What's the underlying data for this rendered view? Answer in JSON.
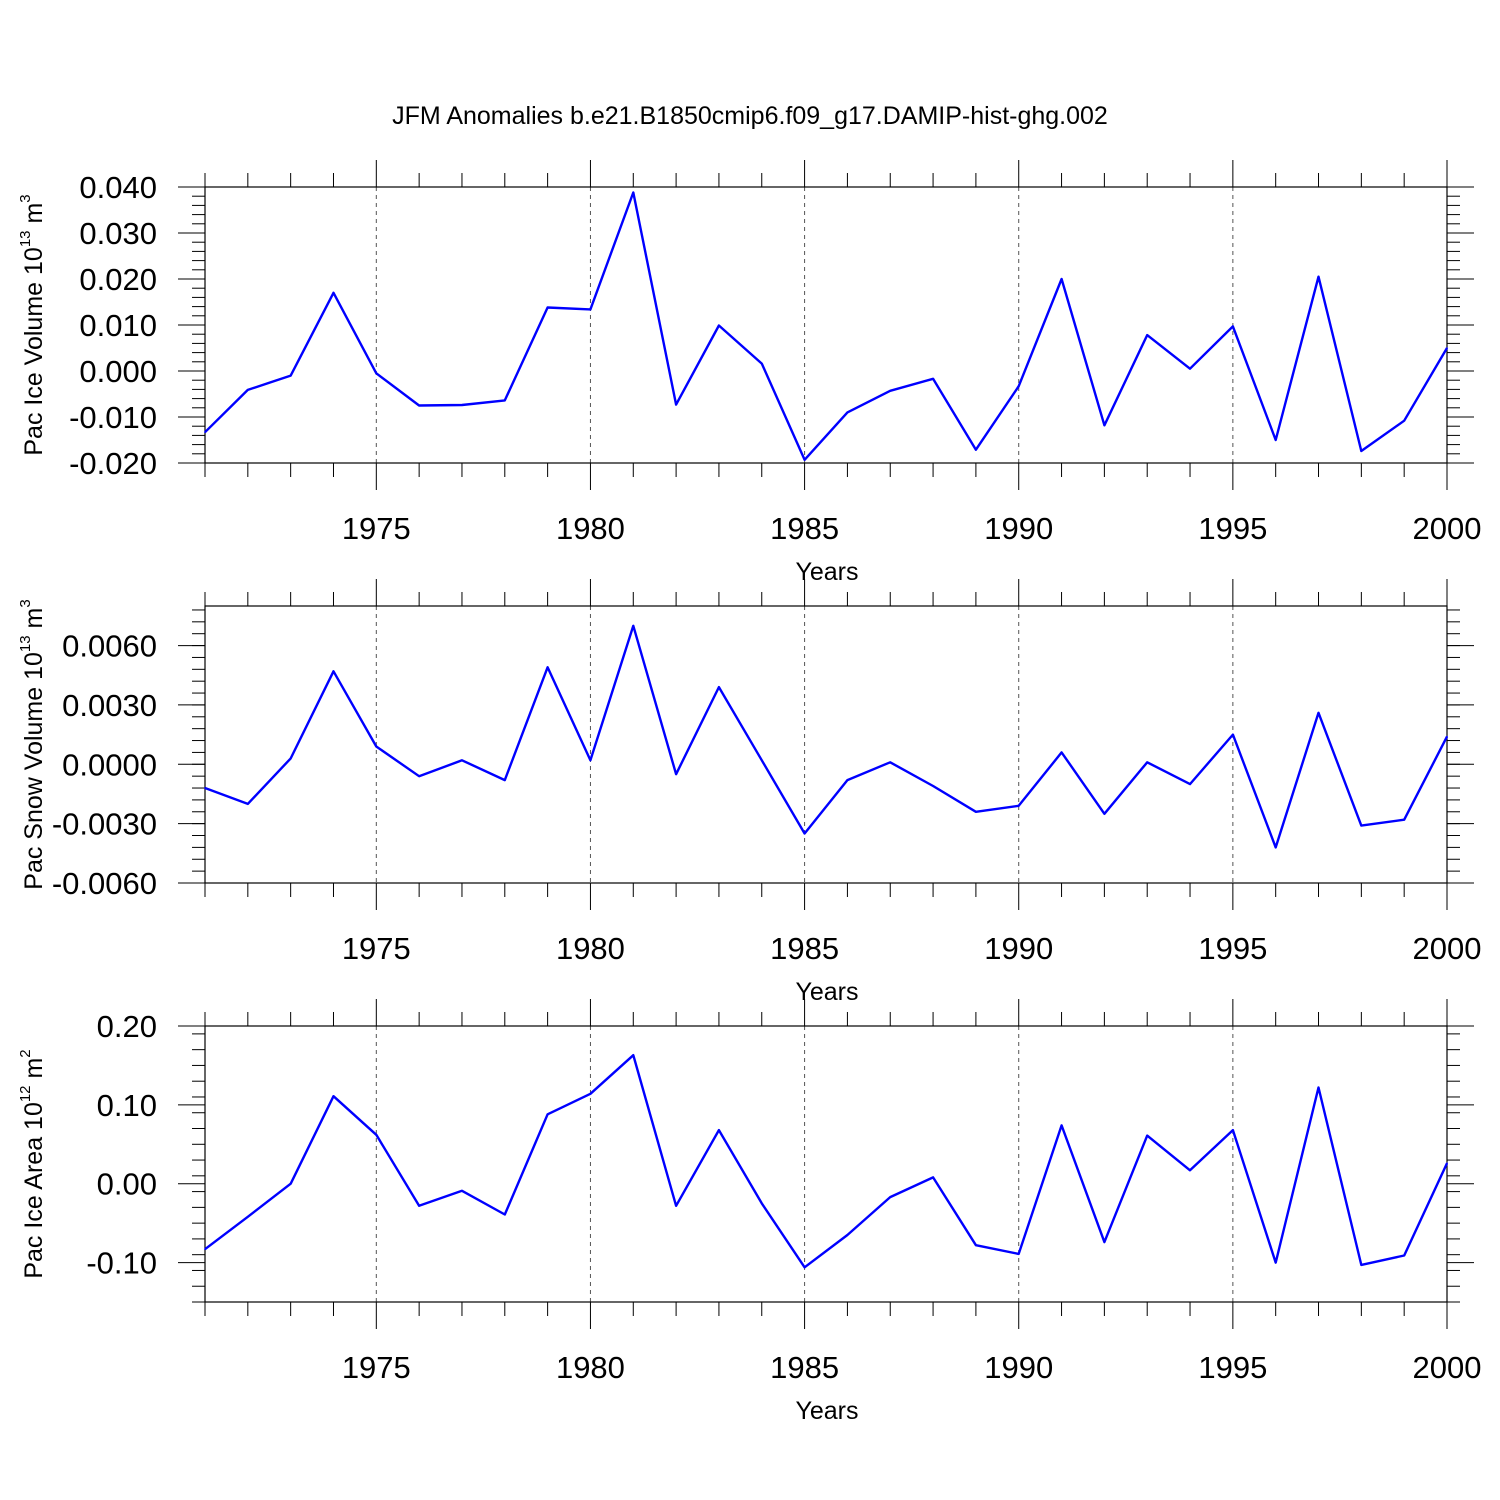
{
  "title": "JFM Anomalies b.e21.B1850cmip6.f09_g17.DAMIP-hist-ghg.002",
  "chart_data": [
    {
      "type": "line",
      "xlabel": "Years",
      "ylabel": {
        "base": "Pac Ice Volume 10",
        "exp": "13",
        "unit": " m",
        "unit_exp": "3"
      },
      "xlim": [
        1971,
        2000
      ],
      "ylim": [
        -0.02,
        0.04
      ],
      "yticks": [
        -0.02,
        -0.01,
        0.0,
        0.01,
        0.02,
        0.03,
        0.04
      ],
      "ytick_labels": [
        "-0.020",
        "-0.010",
        "0.000",
        "0.010",
        "0.020",
        "0.030",
        "0.040"
      ],
      "xticks": [
        1975,
        1980,
        1985,
        1990,
        1995,
        2000
      ],
      "xtick_labels": [
        "1975",
        "1980",
        "1985",
        "1990",
        "1995",
        "2000"
      ],
      "grid_x": true,
      "color": "#0000ff",
      "x": [
        1971,
        1972,
        1973,
        1974,
        1975,
        1976,
        1977,
        1978,
        1979,
        1980,
        1981,
        1982,
        1983,
        1984,
        1985,
        1986,
        1987,
        1988,
        1989,
        1990,
        1991,
        1992,
        1993,
        1994,
        1995,
        1996,
        1997,
        1998,
        1999,
        2000
      ],
      "values": [
        -0.0133,
        -0.0041,
        -0.001,
        0.017,
        -0.0005,
        -0.0075,
        -0.0074,
        -0.0064,
        0.0138,
        0.0134,
        0.0388,
        -0.0073,
        0.0099,
        0.0016,
        -0.0193,
        -0.009,
        -0.0043,
        -0.0017,
        -0.0171,
        -0.0033,
        0.02,
        -0.0118,
        0.0078,
        0.0005,
        0.0097,
        -0.015,
        0.0205,
        -0.0174,
        -0.0108,
        0.005
      ]
    },
    {
      "type": "line",
      "xlabel": "Years",
      "ylabel": {
        "base": "Pac Snow Volume 10",
        "exp": "13",
        "unit": " m",
        "unit_exp": "3"
      },
      "xlim": [
        1971,
        2000
      ],
      "ylim": [
        -0.006,
        0.008
      ],
      "yticks": [
        -0.006,
        -0.003,
        0.0,
        0.003,
        0.006
      ],
      "ytick_labels": [
        "-0.0060",
        "-0.0030",
        "0.0000",
        "0.0030",
        "0.0060"
      ],
      "xticks": [
        1975,
        1980,
        1985,
        1990,
        1995,
        2000
      ],
      "xtick_labels": [
        "1975",
        "1980",
        "1985",
        "1990",
        "1995",
        "2000"
      ],
      "grid_x": true,
      "color": "#0000ff",
      "x": [
        1971,
        1972,
        1973,
        1974,
        1975,
        1976,
        1977,
        1978,
        1979,
        1980,
        1981,
        1982,
        1983,
        1984,
        1985,
        1986,
        1987,
        1988,
        1989,
        1990,
        1991,
        1992,
        1993,
        1994,
        1995,
        1996,
        1997,
        1998,
        1999,
        2000
      ],
      "values": [
        -0.0012,
        -0.002,
        0.0003,
        0.0047,
        0.0009,
        -0.0006,
        0.0002,
        -0.0008,
        0.0049,
        0.0002,
        0.007,
        -0.0005,
        0.0039,
        0.0002,
        -0.0035,
        -0.0008,
        0.0001,
        -0.0011,
        -0.0024,
        -0.0021,
        0.0006,
        -0.0025,
        0.0001,
        -0.001,
        0.0015,
        -0.0042,
        0.0026,
        -0.0031,
        -0.0028,
        0.0014
      ]
    },
    {
      "type": "line",
      "xlabel": "Years",
      "ylabel": {
        "base": "Pac Ice Area 10",
        "exp": "12",
        "unit": " m",
        "unit_exp": "2"
      },
      "xlim": [
        1971,
        2000
      ],
      "ylim": [
        -0.15,
        0.2
      ],
      "yticks": [
        -0.1,
        0.0,
        0.1,
        0.2
      ],
      "ytick_labels": [
        "-0.10",
        "0.00",
        "0.10",
        "0.20"
      ],
      "xticks": [
        1975,
        1980,
        1985,
        1990,
        1995,
        2000
      ],
      "xtick_labels": [
        "1975",
        "1980",
        "1985",
        "1990",
        "1995",
        "2000"
      ],
      "grid_x": true,
      "color": "#0000ff",
      "x": [
        1971,
        1972,
        1973,
        1974,
        1975,
        1976,
        1977,
        1978,
        1979,
        1980,
        1981,
        1982,
        1983,
        1984,
        1985,
        1986,
        1987,
        1988,
        1989,
        1990,
        1991,
        1992,
        1993,
        1994,
        1995,
        1996,
        1997,
        1998,
        1999,
        2000
      ],
      "values": [
        -0.083,
        -0.042,
        0.0,
        0.111,
        0.062,
        -0.028,
        -0.009,
        -0.039,
        0.088,
        0.114,
        0.163,
        -0.028,
        0.068,
        -0.025,
        -0.106,
        -0.065,
        -0.017,
        0.008,
        -0.078,
        -0.089,
        0.074,
        -0.074,
        0.061,
        0.017,
        0.068,
        -0.1,
        0.122,
        -0.103,
        -0.091,
        0.026
      ]
    }
  ]
}
